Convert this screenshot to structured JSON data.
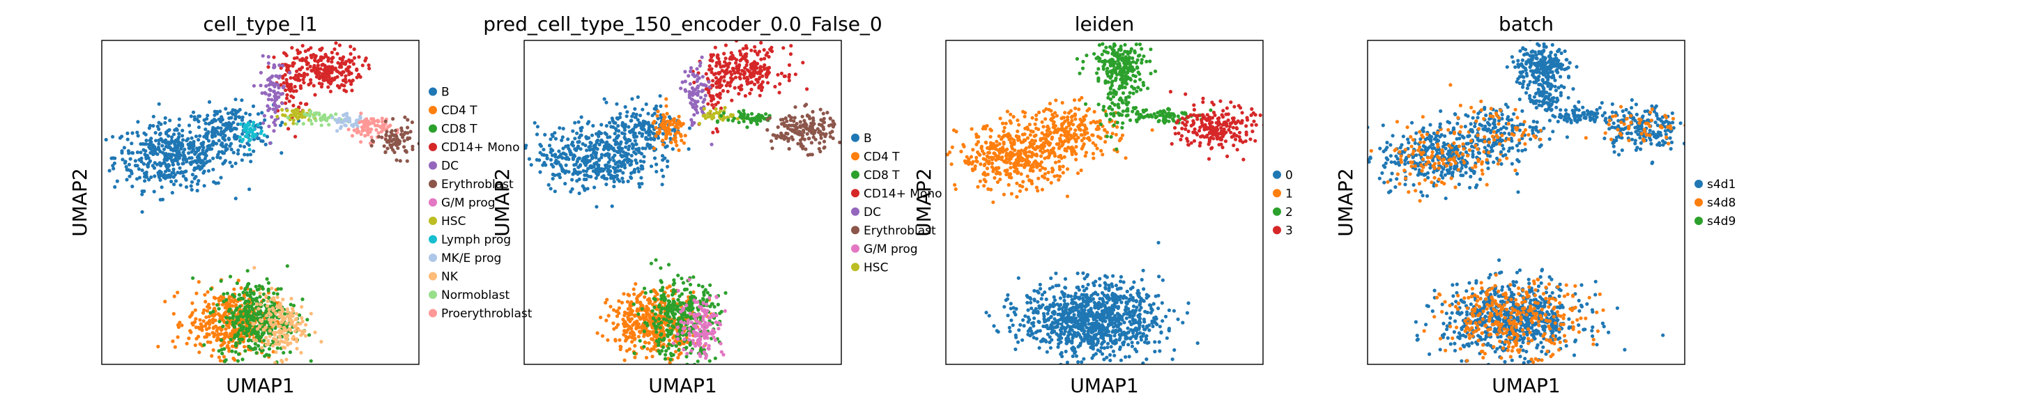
{
  "chart_data": [
    {
      "type": "scatter",
      "title": "cell_type_l1",
      "xlabel": "UMAP1",
      "ylabel": "UMAP2",
      "legend": [
        {
          "name": "B",
          "color": "#1f77b4"
        },
        {
          "name": "CD4 T",
          "color": "#ff7f0e"
        },
        {
          "name": "CD8 T",
          "color": "#2ca02c"
        },
        {
          "name": "CD14+ Mono",
          "color": "#d62728"
        },
        {
          "name": "DC",
          "color": "#9467bd"
        },
        {
          "name": "Erythroblast",
          "color": "#8c564b"
        },
        {
          "name": "G/M prog",
          "color": "#e377c2"
        },
        {
          "name": "HSC",
          "color": "#bcbd22"
        },
        {
          "name": "Lymph prog",
          "color": "#17becf"
        },
        {
          "name": "MK/E prog",
          "color": "#aec7e8"
        },
        {
          "name": "NK",
          "color": "#ffbb78"
        },
        {
          "name": "Normoblast",
          "color": "#98df8a"
        },
        {
          "name": "Proerythroblast",
          "color": "#ff9896"
        }
      ],
      "clusters": [
        {
          "label": "B",
          "x": 0.22,
          "y": 0.64,
          "sx": 0.09,
          "sy": 0.05,
          "n": 420
        },
        {
          "label": "B",
          "x": 0.4,
          "y": 0.72,
          "sx": 0.07,
          "sy": 0.04,
          "n": 200
        },
        {
          "label": "Lymph prog",
          "x": 0.47,
          "y": 0.72,
          "sx": 0.02,
          "sy": 0.02,
          "n": 40
        },
        {
          "label": "CD14+ Mono",
          "x": 0.7,
          "y": 0.91,
          "sx": 0.06,
          "sy": 0.035,
          "n": 220
        },
        {
          "label": "CD14+ Mono",
          "x": 0.6,
          "y": 0.86,
          "sx": 0.02,
          "sy": 0.06,
          "n": 60
        },
        {
          "label": "DC",
          "x": 0.54,
          "y": 0.84,
          "sx": 0.02,
          "sy": 0.05,
          "n": 80
        },
        {
          "label": "HSC",
          "x": 0.62,
          "y": 0.77,
          "sx": 0.03,
          "sy": 0.01,
          "n": 40
        },
        {
          "label": "Normoblast",
          "x": 0.7,
          "y": 0.76,
          "sx": 0.03,
          "sy": 0.01,
          "n": 40
        },
        {
          "label": "MK/E prog",
          "x": 0.78,
          "y": 0.75,
          "sx": 0.03,
          "sy": 0.01,
          "n": 40
        },
        {
          "label": "Proerythroblast",
          "x": 0.85,
          "y": 0.73,
          "sx": 0.03,
          "sy": 0.02,
          "n": 80
        },
        {
          "label": "Erythroblast",
          "x": 0.93,
          "y": 0.69,
          "sx": 0.03,
          "sy": 0.025,
          "n": 80
        },
        {
          "label": "CD4 T",
          "x": 0.41,
          "y": 0.13,
          "sx": 0.07,
          "sy": 0.05,
          "n": 420
        },
        {
          "label": "CD8 T",
          "x": 0.49,
          "y": 0.14,
          "sx": 0.06,
          "sy": 0.06,
          "n": 360
        },
        {
          "label": "NK",
          "x": 0.56,
          "y": 0.12,
          "sx": 0.04,
          "sy": 0.05,
          "n": 160
        }
      ]
    },
    {
      "type": "scatter",
      "title": "pred_cell_type_150_encoder_0.0_False_0",
      "xlabel": "UMAP1",
      "ylabel": "UMAP2",
      "legend": [
        {
          "name": "B",
          "color": "#1f77b4"
        },
        {
          "name": "CD4 T",
          "color": "#ff7f0e"
        },
        {
          "name": "CD8 T",
          "color": "#2ca02c"
        },
        {
          "name": "CD14+ Mono",
          "color": "#d62728"
        },
        {
          "name": "DC",
          "color": "#9467bd"
        },
        {
          "name": "Erythroblast",
          "color": "#8c564b"
        },
        {
          "name": "G/M prog",
          "color": "#e377c2"
        },
        {
          "name": "HSC",
          "color": "#bcbd22"
        }
      ],
      "clusters": [
        {
          "label": "B",
          "x": 0.22,
          "y": 0.64,
          "sx": 0.09,
          "sy": 0.05,
          "n": 420
        },
        {
          "label": "B",
          "x": 0.38,
          "y": 0.72,
          "sx": 0.06,
          "sy": 0.04,
          "n": 180
        },
        {
          "label": "CD4 T",
          "x": 0.46,
          "y": 0.72,
          "sx": 0.03,
          "sy": 0.03,
          "n": 80
        },
        {
          "label": "CD14+ Mono",
          "x": 0.7,
          "y": 0.91,
          "sx": 0.06,
          "sy": 0.035,
          "n": 220
        },
        {
          "label": "CD14+ Mono",
          "x": 0.6,
          "y": 0.86,
          "sx": 0.02,
          "sy": 0.06,
          "n": 60
        },
        {
          "label": "DC",
          "x": 0.54,
          "y": 0.83,
          "sx": 0.02,
          "sy": 0.05,
          "n": 80
        },
        {
          "label": "HSC",
          "x": 0.62,
          "y": 0.77,
          "sx": 0.03,
          "sy": 0.01,
          "n": 40
        },
        {
          "label": "CD8 T",
          "x": 0.72,
          "y": 0.76,
          "sx": 0.04,
          "sy": 0.01,
          "n": 60
        },
        {
          "label": "Erythroblast",
          "x": 0.88,
          "y": 0.72,
          "sx": 0.05,
          "sy": 0.03,
          "n": 170
        },
        {
          "label": "CD4 T",
          "x": 0.41,
          "y": 0.13,
          "sx": 0.07,
          "sy": 0.05,
          "n": 420
        },
        {
          "label": "CD8 T",
          "x": 0.49,
          "y": 0.14,
          "sx": 0.06,
          "sy": 0.06,
          "n": 360
        },
        {
          "label": "G/M prog",
          "x": 0.56,
          "y": 0.12,
          "sx": 0.035,
          "sy": 0.05,
          "n": 140
        }
      ]
    },
    {
      "type": "scatter",
      "title": "leiden",
      "xlabel": "UMAP1",
      "ylabel": "UMAP2",
      "legend": [
        {
          "name": "0",
          "color": "#1f77b4"
        },
        {
          "name": "1",
          "color": "#ff7f0e"
        },
        {
          "name": "2",
          "color": "#2ca02c"
        },
        {
          "name": "3",
          "color": "#d62728"
        }
      ],
      "clusters": [
        {
          "label": "1",
          "x": 0.22,
          "y": 0.64,
          "sx": 0.09,
          "sy": 0.05,
          "n": 420
        },
        {
          "label": "1",
          "x": 0.4,
          "y": 0.72,
          "sx": 0.07,
          "sy": 0.04,
          "n": 220
        },
        {
          "label": "2",
          "x": 0.55,
          "y": 0.87,
          "sx": 0.035,
          "sy": 0.07,
          "n": 200
        },
        {
          "label": "2",
          "x": 0.55,
          "y": 0.93,
          "sx": 0.05,
          "sy": 0.025,
          "n": 100
        },
        {
          "label": "2",
          "x": 0.67,
          "y": 0.77,
          "sx": 0.05,
          "sy": 0.012,
          "n": 80
        },
        {
          "label": "3",
          "x": 0.85,
          "y": 0.73,
          "sx": 0.06,
          "sy": 0.035,
          "n": 220
        },
        {
          "label": "0",
          "x": 0.46,
          "y": 0.14,
          "sx": 0.11,
          "sy": 0.055,
          "n": 1000
        }
      ]
    },
    {
      "type": "scatter",
      "title": "batch",
      "xlabel": "UMAP1",
      "ylabel": "UMAP2",
      "legend": [
        {
          "name": "s4d1",
          "color": "#1f77b4"
        },
        {
          "name": "s4d8",
          "color": "#ff7f0e"
        },
        {
          "name": "s4d9",
          "color": "#2ca02c"
        }
      ],
      "clusters": [
        {
          "label": "s4d1",
          "x": 0.22,
          "y": 0.64,
          "sx": 0.09,
          "sy": 0.05,
          "n": 330
        },
        {
          "label": "s4d8",
          "x": 0.22,
          "y": 0.64,
          "sx": 0.09,
          "sy": 0.05,
          "n": 120
        },
        {
          "label": "s4d1",
          "x": 0.4,
          "y": 0.72,
          "sx": 0.07,
          "sy": 0.04,
          "n": 160
        },
        {
          "label": "s4d8",
          "x": 0.4,
          "y": 0.72,
          "sx": 0.07,
          "sy": 0.04,
          "n": 60
        },
        {
          "label": "s4d1",
          "x": 0.55,
          "y": 0.88,
          "sx": 0.035,
          "sy": 0.07,
          "n": 220
        },
        {
          "label": "s4d1",
          "x": 0.55,
          "y": 0.93,
          "sx": 0.05,
          "sy": 0.025,
          "n": 100
        },
        {
          "label": "s4d1",
          "x": 0.68,
          "y": 0.77,
          "sx": 0.05,
          "sy": 0.012,
          "n": 70
        },
        {
          "label": "s4d1",
          "x": 0.86,
          "y": 0.73,
          "sx": 0.06,
          "sy": 0.035,
          "n": 180
        },
        {
          "label": "s4d8",
          "x": 0.86,
          "y": 0.73,
          "sx": 0.06,
          "sy": 0.035,
          "n": 50
        },
        {
          "label": "s4d1",
          "x": 0.46,
          "y": 0.14,
          "sx": 0.11,
          "sy": 0.055,
          "n": 700
        },
        {
          "label": "s4d8",
          "x": 0.46,
          "y": 0.14,
          "sx": 0.11,
          "sy": 0.055,
          "n": 320
        }
      ]
    }
  ]
}
